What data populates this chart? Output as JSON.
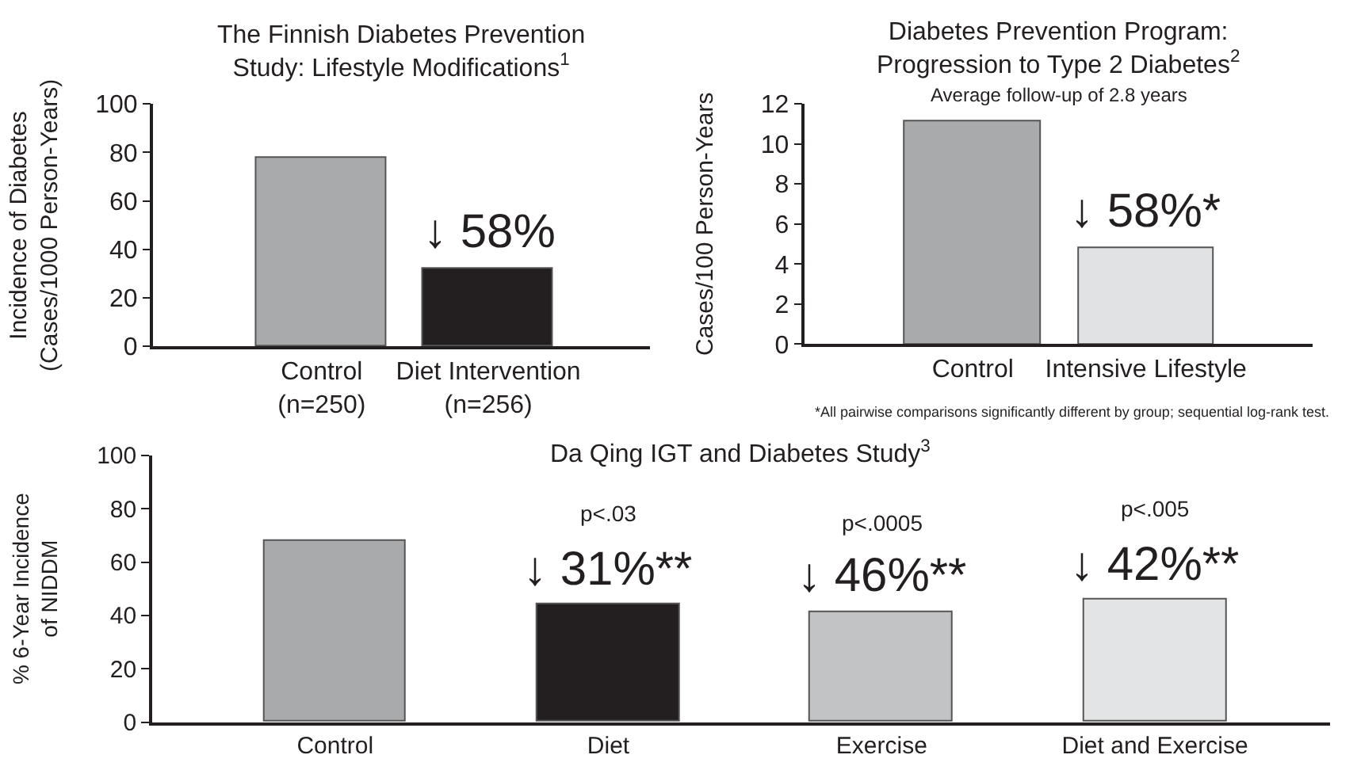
{
  "chart_data": [
    {
      "type": "bar",
      "title": "The Finnish Diabetes Prevention\nStudy: Lifestyle Modifications$^{1}$",
      "ylabel": "Incidence of Diabetes\n(Cases/1000 Person-Years)",
      "categories": [
        "Control\n(n=250)",
        "Diet Intervention\n(n=256)"
      ],
      "values": [
        78,
        32
      ],
      "colors": [
        "#a9aaac",
        "#231f20"
      ],
      "ylim": [
        0,
        100
      ],
      "yticks": [
        0,
        20,
        40,
        60,
        80,
        100
      ],
      "grid": false,
      "legend": false,
      "annotations": [
        "↓ 58%"
      ]
    },
    {
      "type": "bar",
      "title": "Diabetes Prevention Program:\nProgression to Type 2 Diabetes$^{2}$",
      "subtitle": "Average follow-up of 2.8 years",
      "ylabel": "Cases/100 Person-Years",
      "categories": [
        "Control",
        "Intensive Lifestyle"
      ],
      "values": [
        11.1,
        4.8
      ],
      "colors": [
        "#a9aaac",
        "#e1e2e3"
      ],
      "ylim": [
        0,
        12
      ],
      "yticks": [
        0,
        2,
        4,
        6,
        8,
        10,
        12
      ],
      "grid": false,
      "legend": false,
      "annotations": [
        "↓ 58%*",
        "*All pairwise comparisons significantly different by group; sequential log-rank test."
      ]
    },
    {
      "type": "bar",
      "title": "Da Qing IGT and Diabetes Study$^{3}$",
      "ylabel": "% 6-Year Incidence\nof NIDDM",
      "categories": [
        "Control",
        "Diet",
        "Exercise",
        "Diet and Exercise"
      ],
      "values": [
        68,
        44,
        41,
        46
      ],
      "colors": [
        "#a9aaac",
        "#231f20",
        "#c2c3c5",
        "#e3e4e5"
      ],
      "ylim": [
        0,
        100
      ],
      "yticks": [
        0,
        20,
        40,
        60,
        80,
        100
      ],
      "grid": false,
      "legend": false,
      "annotations": [
        "p<.03",
        "↓ 31%**",
        "p<.0005",
        "↓ 46%**",
        "p<.005",
        "↓ 42%**"
      ]
    }
  ]
}
